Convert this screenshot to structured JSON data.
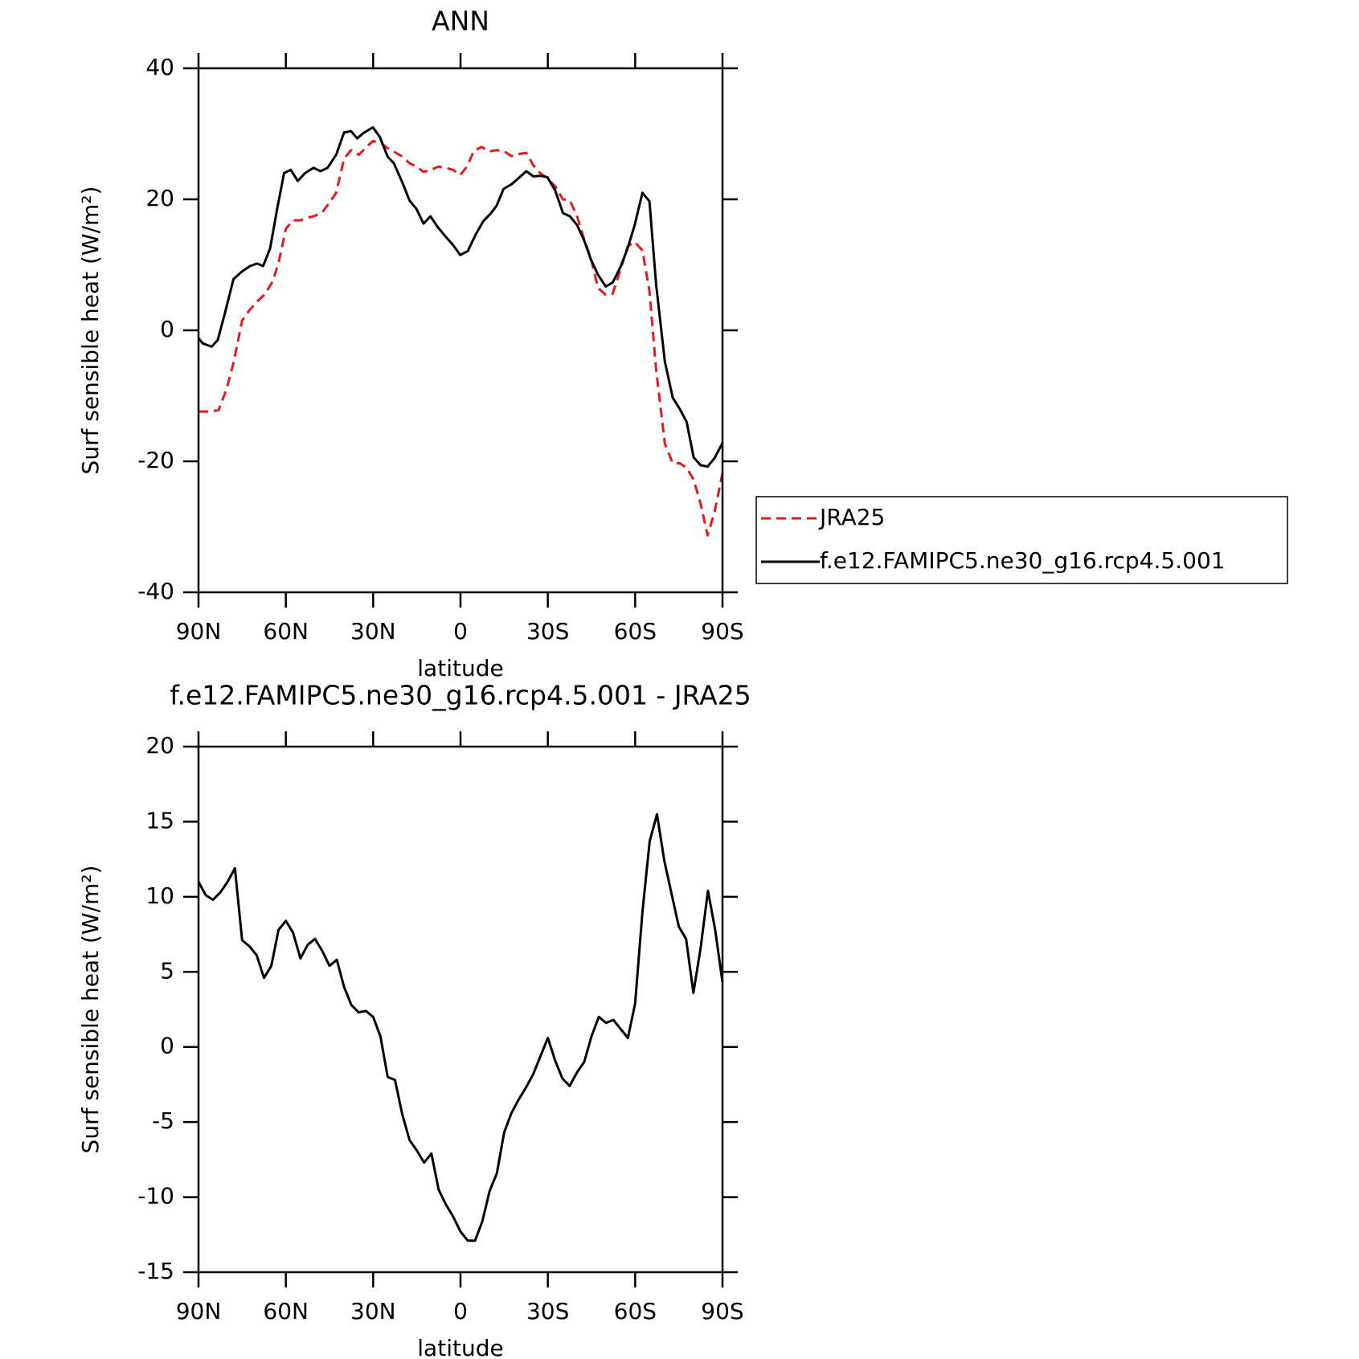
{
  "chart_data": [
    {
      "type": "line",
      "title": "ANN",
      "xlabel": "latitude",
      "ylabel": "Surf sensible heat (W/m²)",
      "xlim": [
        90,
        -90
      ],
      "ylim": [
        -40,
        40
      ],
      "xticks": [
        {
          "value": 90,
          "label": "90N"
        },
        {
          "value": 60,
          "label": "60N"
        },
        {
          "value": 30,
          "label": "30N"
        },
        0,
        {
          "value": -30,
          "label": "30S"
        },
        {
          "value": -60,
          "label": "60S"
        },
        {
          "value": -90,
          "label": "90S"
        }
      ],
      "yticks": [
        40,
        20,
        0,
        -20,
        -40
      ],
      "legend": "right",
      "series": [
        {
          "name": "JRA25",
          "color": "#e41a1c",
          "style": "dashed",
          "x": [
            90,
            86.4,
            83.1,
            80.4,
            78.0,
            75.0,
            72.6,
            69.6,
            67.2,
            64.5,
            62.4,
            60.0,
            57.6,
            55.0,
            52.3,
            49.9,
            47.5,
            45.0,
            42.7,
            40.0,
            37.6,
            34.9,
            32.5,
            30.1,
            27.4,
            25.0,
            22.6,
            19.9,
            17.5,
            15.1,
            12.7,
            10.0,
            7.6,
            5.2,
            2.5,
            0.1,
            -2.2,
            -4.6,
            -7.3,
            -9.7,
            -12.4,
            -14.8,
            -17.5,
            -19.9,
            -22.6,
            -25.0,
            -27.4,
            -29.8,
            -32.5,
            -35.2,
            -37.6,
            -40.0,
            -42.4,
            -44.8,
            -47.2,
            -49.9,
            -52.3,
            -55.0,
            -57.4,
            -59.8,
            -62.5,
            -64.9,
            -67.2,
            -70.2,
            -72.9,
            -75.3,
            -77.7,
            -80.1,
            -82.5,
            -84.9,
            -87.3,
            -90
          ],
          "values": [
            -12.4,
            -12.4,
            -12.2,
            -9,
            -5,
            1.5,
            3,
            4.5,
            5.5,
            7.5,
            10.5,
            15.5,
            16.8,
            16.8,
            17.2,
            17.5,
            18,
            19.5,
            21,
            26.2,
            27.5,
            26.8,
            27.9,
            28.9,
            28.6,
            27.8,
            27.2,
            26.5,
            25.5,
            25,
            24.2,
            24.5,
            25,
            24.8,
            24.5,
            23.7,
            25,
            27.4,
            28,
            27.3,
            27.5,
            27.4,
            26.6,
            26.9,
            27.1,
            25.2,
            24,
            23.2,
            22,
            20,
            19.8,
            17.5,
            14,
            11,
            6.5,
            5.4,
            5.6,
            9.3,
            12.8,
            13.5,
            12.2,
            6,
            -6,
            -17.3,
            -20.3,
            -20.3,
            -21,
            -22.8,
            -26.5,
            -31.3,
            -27.7,
            -21.8
          ]
        },
        {
          "name": "f.e12.FAMIPC5.ne30_g16.rcp4.5.001",
          "color": "#000000",
          "style": "solid",
          "x": [
            90,
            88.5,
            85.5,
            83.4,
            81.0,
            78.0,
            75.0,
            72.3,
            69.9,
            67.8,
            65.4,
            63.0,
            60.6,
            58.3,
            55.9,
            53.4,
            50.5,
            48.1,
            45.7,
            42.7,
            40.0,
            37.6,
            35.5,
            33.1,
            30.1,
            27.7,
            25.0,
            22.9,
            19.9,
            17.5,
            15.1,
            12.7,
            10.3,
            7.9,
            5.5,
            2.5,
            0.1,
            -2.5,
            -5.2,
            -7.9,
            -10.3,
            -12.4,
            -14.8,
            -17.5,
            -19.9,
            -22.6,
            -25.0,
            -27.4,
            -29.8,
            -32.5,
            -35.2,
            -37.6,
            -40.0,
            -42.4,
            -44.8,
            -47.2,
            -49.9,
            -52.3,
            -55.0,
            -57.4,
            -59.8,
            -62.5,
            -64.9,
            -67.2,
            -70.2,
            -72.9,
            -75.3,
            -77.7,
            -80.1,
            -82.5,
            -84.9,
            -87.3,
            -90
          ],
          "values": [
            -1.2,
            -2,
            -2.5,
            -1.5,
            2.5,
            7.8,
            9,
            9.8,
            10.2,
            9.8,
            12.5,
            18.5,
            24,
            24.5,
            22.8,
            24,
            24.8,
            24.3,
            24.8,
            26.8,
            30.2,
            30.4,
            29.3,
            30.2,
            31,
            29.5,
            26.5,
            25.5,
            22.5,
            19.8,
            18.5,
            16.3,
            17.4,
            15.8,
            14.5,
            13,
            11.5,
            12.1,
            14.6,
            16.7,
            17.8,
            19,
            21.6,
            22.3,
            23.2,
            24.3,
            23.5,
            23.6,
            23.4,
            21.4,
            17.9,
            17.4,
            16.1,
            13.8,
            10.8,
            8.5,
            6.7,
            7.3,
            9.7,
            12.5,
            16,
            21,
            19.7,
            7,
            -4.8,
            -10.3,
            -12,
            -14,
            -19.4,
            -20.6,
            -20.8,
            -19.5,
            -17.2
          ]
        }
      ]
    },
    {
      "type": "line",
      "title": "f.e12.FAMIPC5.ne30_g16.rcp4.5.001 - JRA25",
      "xlabel": "latitude",
      "ylabel": "Surf sensible heat (W/m²)",
      "xlim": [
        90,
        -90
      ],
      "ylim": [
        -15,
        20
      ],
      "xticks": [
        {
          "value": 90,
          "label": "90N"
        },
        {
          "value": 60,
          "label": "60N"
        },
        {
          "value": 30,
          "label": "30N"
        },
        0,
        {
          "value": -30,
          "label": "30S"
        },
        {
          "value": -60,
          "label": "60S"
        },
        {
          "value": -90,
          "label": "90S"
        }
      ],
      "yticks": [
        20,
        15,
        10,
        5,
        0,
        -5,
        -10,
        -15
      ],
      "color": "#000000",
      "x": [
        90,
        87.5,
        85,
        82.5,
        80,
        77.5,
        75,
        72.5,
        70,
        67.5,
        65,
        62.5,
        60,
        57.5,
        55,
        52.5,
        50,
        47.5,
        45,
        42.5,
        40,
        37.5,
        35,
        32.5,
        30,
        27.5,
        25,
        22.5,
        20,
        17.5,
        15,
        12.5,
        10,
        7.5,
        5,
        2.5,
        0,
        -2.5,
        -5,
        -7.5,
        -10,
        -12.5,
        -15,
        -17.5,
        -20,
        -22.5,
        -25,
        -27.5,
        -30,
        -32.5,
        -35,
        -37.5,
        -40,
        -42.5,
        -45,
        -47.5,
        -50,
        -52.5,
        -55,
        -57.5,
        -60,
        -62.5,
        -65,
        -67.5,
        -70,
        -72.5,
        -75,
        -77.5,
        -80,
        -82.5,
        -85,
        -87.5,
        -90
      ],
      "values": [
        11.0,
        10.1,
        9.8,
        10.3,
        11.0,
        11.9,
        7.1,
        6.7,
        6.1,
        4.6,
        5.4,
        7.8,
        8.4,
        7.6,
        5.9,
        6.8,
        7.2,
        6.4,
        5.4,
        5.8,
        4.0,
        2.8,
        2.3,
        2.4,
        2.0,
        0.7,
        -2.0,
        -2.2,
        -4.5,
        -6.2,
        -6.9,
        -7.7,
        -7.1,
        -9.5,
        -10.5,
        -11.3,
        -12.3,
        -12.9,
        -12.9,
        -11.6,
        -9.6,
        -8.4,
        -5.7,
        -4.4,
        -3.5,
        -2.7,
        -1.8,
        -0.6,
        0.6,
        -0.9,
        -2.1,
        -2.6,
        -1.7,
        -1.0,
        0.7,
        2.0,
        1.6,
        1.8,
        1.2,
        0.6,
        2.9,
        9.0,
        13.7,
        15.5,
        12.4,
        10.2,
        8.0,
        7.2,
        3.6,
        6.6,
        10.4,
        7.8,
        4.3
      ]
    }
  ]
}
